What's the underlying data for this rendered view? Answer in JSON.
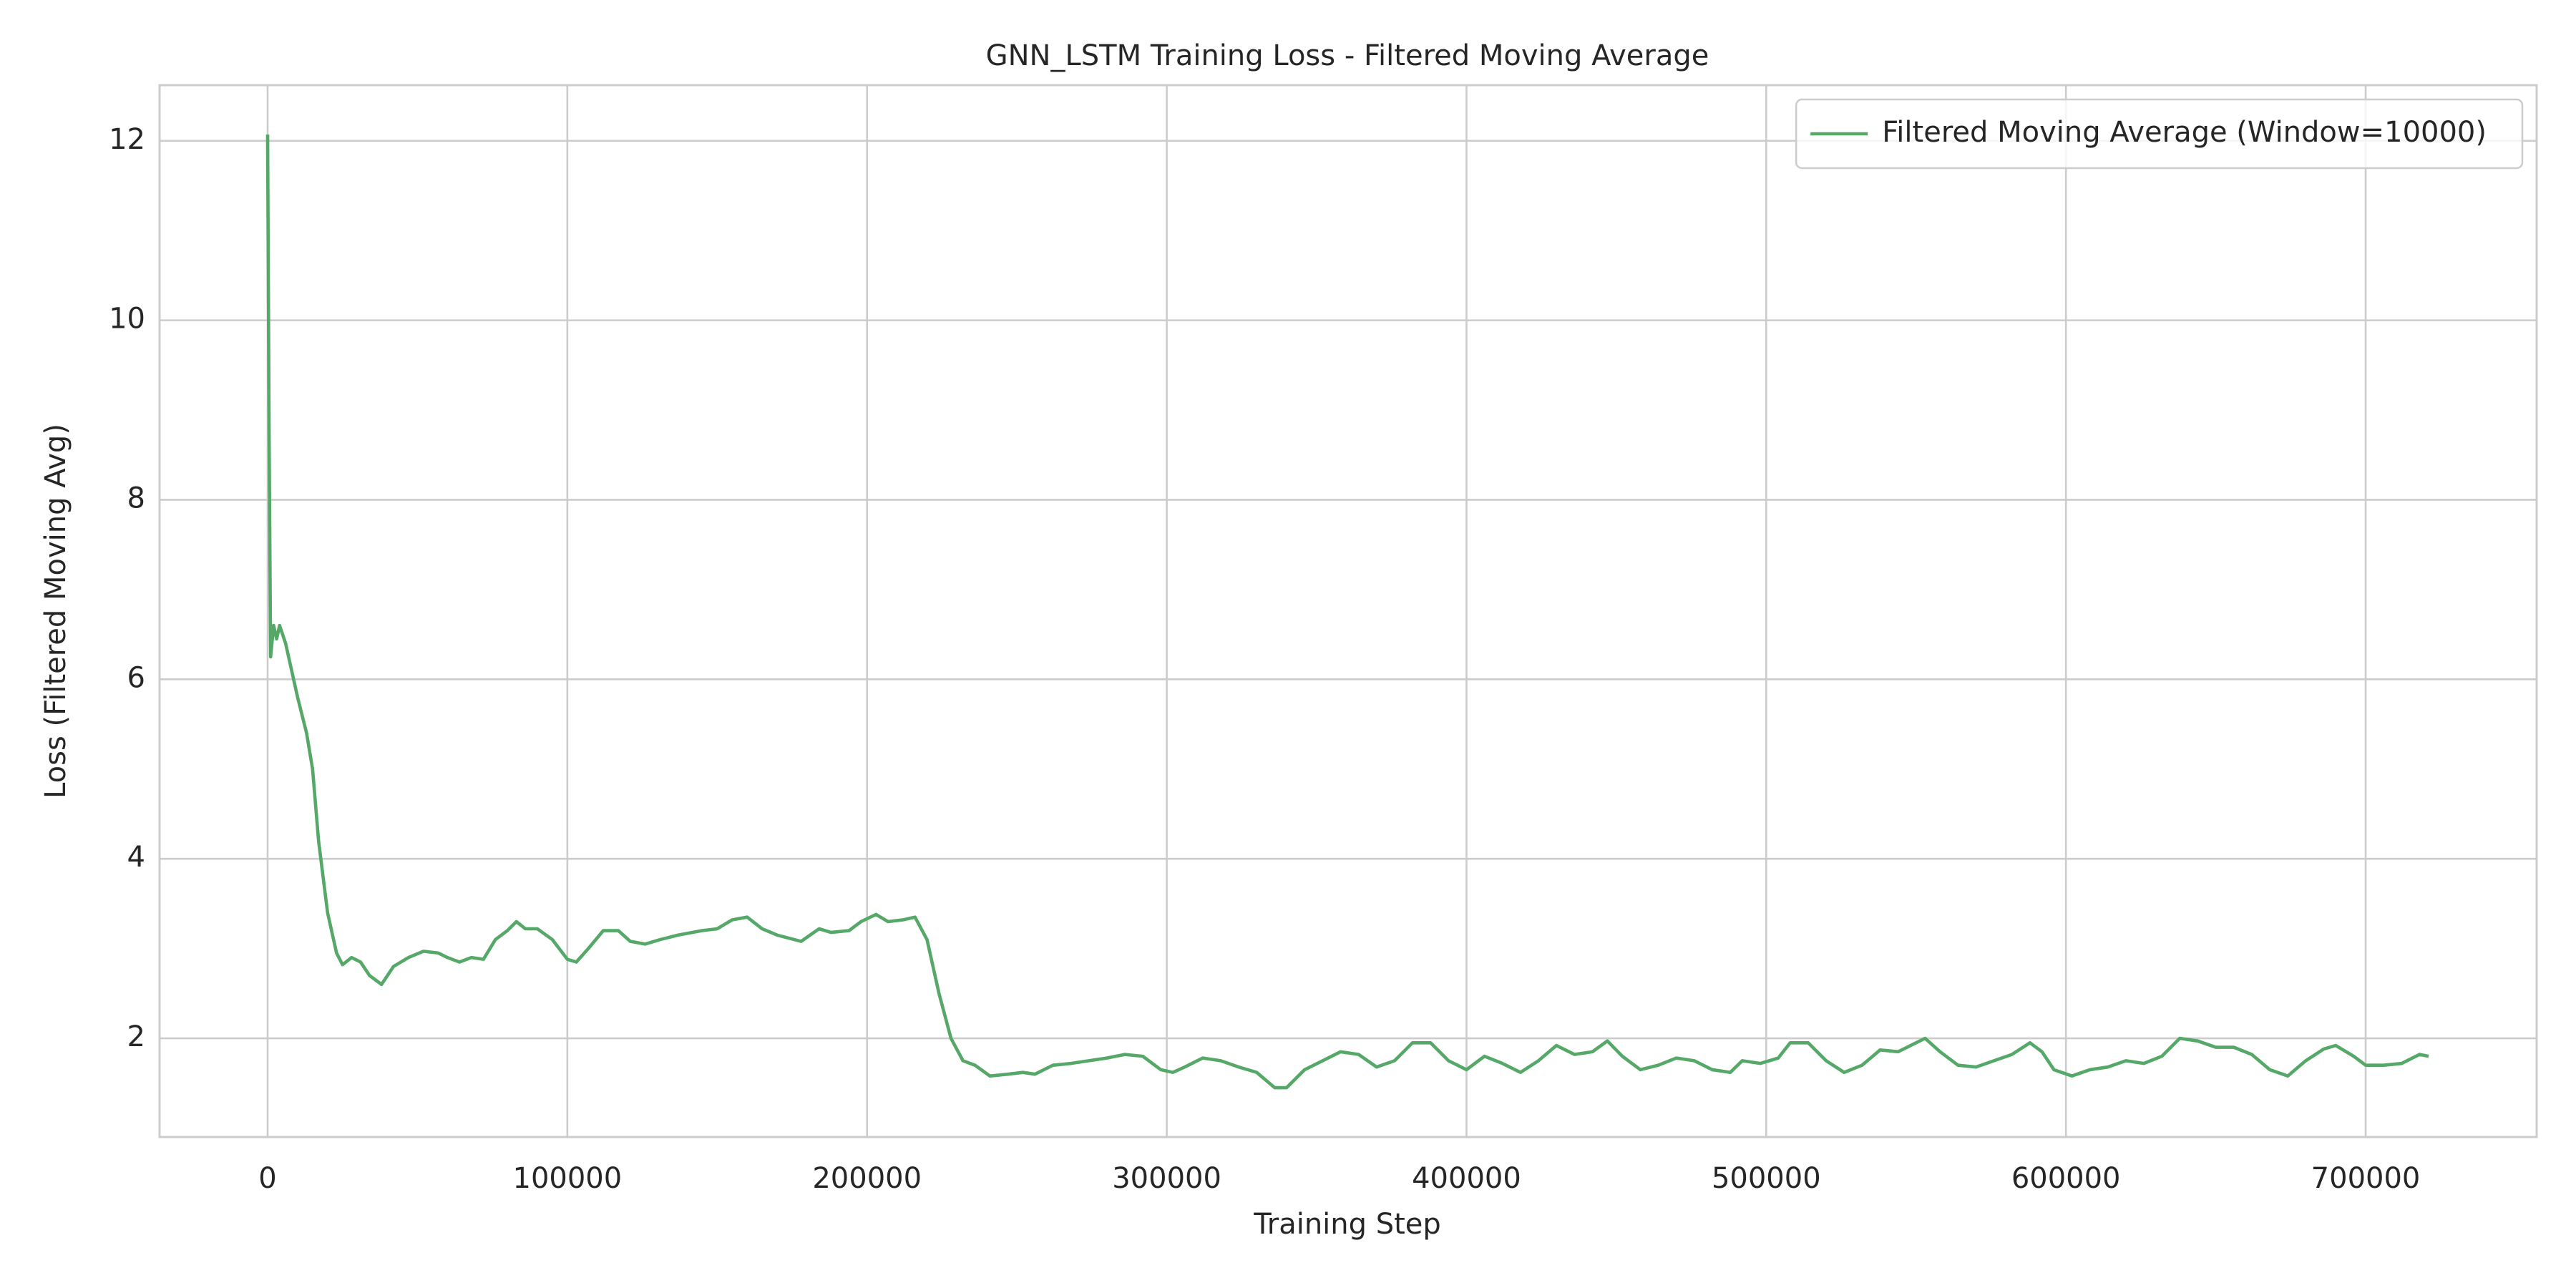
{
  "chart_data": {
    "type": "line",
    "title": "GNN_LSTM Training Loss - Filtered Moving Average",
    "xlabel": "Training Step",
    "ylabel": "Loss (Filtered Moving Avg)",
    "x": [
      0,
      500,
      1000,
      2000,
      3000,
      4000,
      6000,
      8000,
      10000,
      13000,
      15000,
      17000,
      20000,
      23000,
      25000,
      28000,
      31000,
      34000,
      38000,
      42000,
      47000,
      52000,
      57000,
      60000,
      64000,
      68000,
      72000,
      76000,
      80000,
      83000,
      86000,
      90000,
      95000,
      100000,
      103000,
      107000,
      112000,
      117000,
      121000,
      126000,
      131000,
      137000,
      145000,
      150000,
      155000,
      160000,
      165000,
      170000,
      178000,
      184000,
      188000,
      194000,
      198000,
      203000,
      207000,
      212000,
      216000,
      220000,
      224000,
      228000,
      232000,
      236000,
      241000,
      247000,
      252000,
      256000,
      262000,
      268000,
      274000,
      280000,
      286000,
      292000,
      298000,
      302000,
      306000,
      312000,
      318000,
      324000,
      330000,
      336000,
      340000,
      346000,
      352000,
      358000,
      364000,
      370000,
      376000,
      382000,
      388000,
      394000,
      400000,
      406000,
      412000,
      418000,
      424000,
      430000,
      436000,
      442000,
      447000,
      452000,
      458000,
      464000,
      470000,
      476000,
      482000,
      488000,
      492000,
      498000,
      504000,
      508000,
      514000,
      520000,
      526000,
      532000,
      538000,
      544000,
      550000,
      553000,
      558000,
      564000,
      570000,
      576000,
      582000,
      588000,
      592000,
      596000,
      602000,
      608000,
      614000,
      620000,
      626000,
      632000,
      638000,
      644000,
      650000,
      656000,
      662000,
      668000,
      674000,
      680000,
      686000,
      690000,
      696000,
      700000,
      706000,
      712000,
      718000,
      721000
    ],
    "series": [
      {
        "name": "Filtered Moving Average (Window=10000)",
        "color": "#55a868",
        "values": [
          12.07,
          8.7,
          6.25,
          6.6,
          6.45,
          6.6,
          6.4,
          6.1,
          5.8,
          5.4,
          5.0,
          4.2,
          3.4,
          2.95,
          2.82,
          2.9,
          2.85,
          2.7,
          2.6,
          2.8,
          2.9,
          2.97,
          2.95,
          2.9,
          2.85,
          2.9,
          2.88,
          3.1,
          3.2,
          3.3,
          3.22,
          3.22,
          3.1,
          2.88,
          2.85,
          3.0,
          3.2,
          3.2,
          3.08,
          3.05,
          3.1,
          3.15,
          3.2,
          3.22,
          3.32,
          3.35,
          3.22,
          3.15,
          3.08,
          3.22,
          3.18,
          3.2,
          3.3,
          3.38,
          3.3,
          3.32,
          3.35,
          3.1,
          2.5,
          2.0,
          1.75,
          1.7,
          1.58,
          1.6,
          1.62,
          1.6,
          1.7,
          1.72,
          1.75,
          1.78,
          1.82,
          1.8,
          1.65,
          1.62,
          1.68,
          1.78,
          1.75,
          1.68,
          1.62,
          1.45,
          1.45,
          1.65,
          1.75,
          1.85,
          1.82,
          1.68,
          1.75,
          1.95,
          1.95,
          1.75,
          1.65,
          1.8,
          1.72,
          1.62,
          1.75,
          1.92,
          1.82,
          1.85,
          1.97,
          1.8,
          1.65,
          1.7,
          1.78,
          1.75,
          1.65,
          1.62,
          1.75,
          1.72,
          1.78,
          1.95,
          1.95,
          1.75,
          1.62,
          1.7,
          1.87,
          1.85,
          1.95,
          2.0,
          1.85,
          1.7,
          1.68,
          1.75,
          1.82,
          1.95,
          1.85,
          1.65,
          1.58,
          1.65,
          1.68,
          1.75,
          1.72,
          1.8,
          2.0,
          1.97,
          1.9,
          1.9,
          1.82,
          1.65,
          1.58,
          1.75,
          1.88,
          1.92,
          1.8,
          1.7,
          1.7,
          1.72,
          1.82,
          1.8
        ]
      }
    ],
    "xlim": [
      -36050,
      757050
    ],
    "ylim": [
      0.9,
      12.62
    ],
    "xticks": [
      0,
      100000,
      200000,
      300000,
      400000,
      500000,
      600000,
      700000
    ],
    "yticks": [
      2,
      4,
      6,
      8,
      10,
      12
    ],
    "grid": true,
    "legend": "upper right"
  }
}
